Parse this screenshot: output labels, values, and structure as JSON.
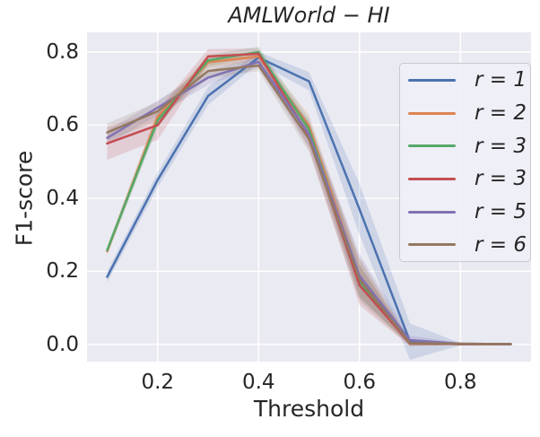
{
  "chart_data": {
    "type": "line",
    "title": "AMLWorld − HI",
    "xlabel": "Threshold",
    "ylabel": "F1-score",
    "grid": true,
    "legend_position": "upper right",
    "background": "#eaeaf2",
    "gridline_color": "#ffffff",
    "xlim": [
      0.06,
      0.94
    ],
    "ylim": [
      -0.047,
      0.854
    ],
    "xtick_values": [
      0.2,
      0.4,
      0.6,
      0.8
    ],
    "xtick_labels": [
      "0.2",
      "0.4",
      "0.6",
      "0.8"
    ],
    "ytick_values": [
      0.0,
      0.2,
      0.4,
      0.6,
      0.8
    ],
    "ytick_labels": [
      "0.0",
      "0.2",
      "0.4",
      "0.6",
      "0.8"
    ],
    "x": [
      0.1,
      0.2,
      0.3,
      0.4,
      0.5,
      0.6,
      0.7,
      0.8,
      0.9
    ],
    "series": [
      {
        "name": "r = 1",
        "color": "#4C72B0",
        "values": [
          0.185,
          0.45,
          0.68,
          0.785,
          0.72,
          0.37,
          0.008,
          0.001,
          0.001
        ],
        "band": [
          0.015,
          0.02,
          0.025,
          0.015,
          0.025,
          0.07,
          0.05,
          0.003,
          0.002
        ]
      },
      {
        "name": "r = 2",
        "color": "#DD8452",
        "values": [
          0.255,
          0.623,
          0.772,
          0.788,
          0.598,
          0.182,
          0.003,
          0.001,
          0.001
        ],
        "band": [
          0.012,
          0.02,
          0.015,
          0.012,
          0.03,
          0.05,
          0.006,
          0.002,
          0.002
        ]
      },
      {
        "name": "r = 3",
        "color": "#55A868",
        "values": [
          0.258,
          0.613,
          0.777,
          0.8,
          0.588,
          0.172,
          0.003,
          0.001,
          0.001
        ],
        "band": [
          0.012,
          0.02,
          0.015,
          0.015,
          0.03,
          0.045,
          0.006,
          0.002,
          0.002
        ]
      },
      {
        "name": "r = 3",
        "color": "#C44E52",
        "values": [
          0.55,
          0.6,
          0.788,
          0.795,
          0.57,
          0.162,
          0.003,
          0.001,
          0.001
        ],
        "band": [
          0.045,
          0.04,
          0.02,
          0.015,
          0.035,
          0.055,
          0.008,
          0.002,
          0.002
        ]
      },
      {
        "name": "r = 5",
        "color": "#8172B3",
        "values": [
          0.565,
          0.648,
          0.73,
          0.773,
          0.575,
          0.188,
          0.012,
          0.002,
          0.001
        ],
        "band": [
          0.02,
          0.02,
          0.02,
          0.015,
          0.035,
          0.06,
          0.012,
          0.003,
          0.002
        ]
      },
      {
        "name": "r = 6",
        "color": "#937860",
        "values": [
          0.58,
          0.638,
          0.748,
          0.763,
          0.562,
          0.178,
          0.004,
          0.002,
          0.001
        ],
        "band": [
          0.025,
          0.025,
          0.02,
          0.015,
          0.035,
          0.06,
          0.008,
          0.003,
          0.002
        ]
      }
    ]
  }
}
